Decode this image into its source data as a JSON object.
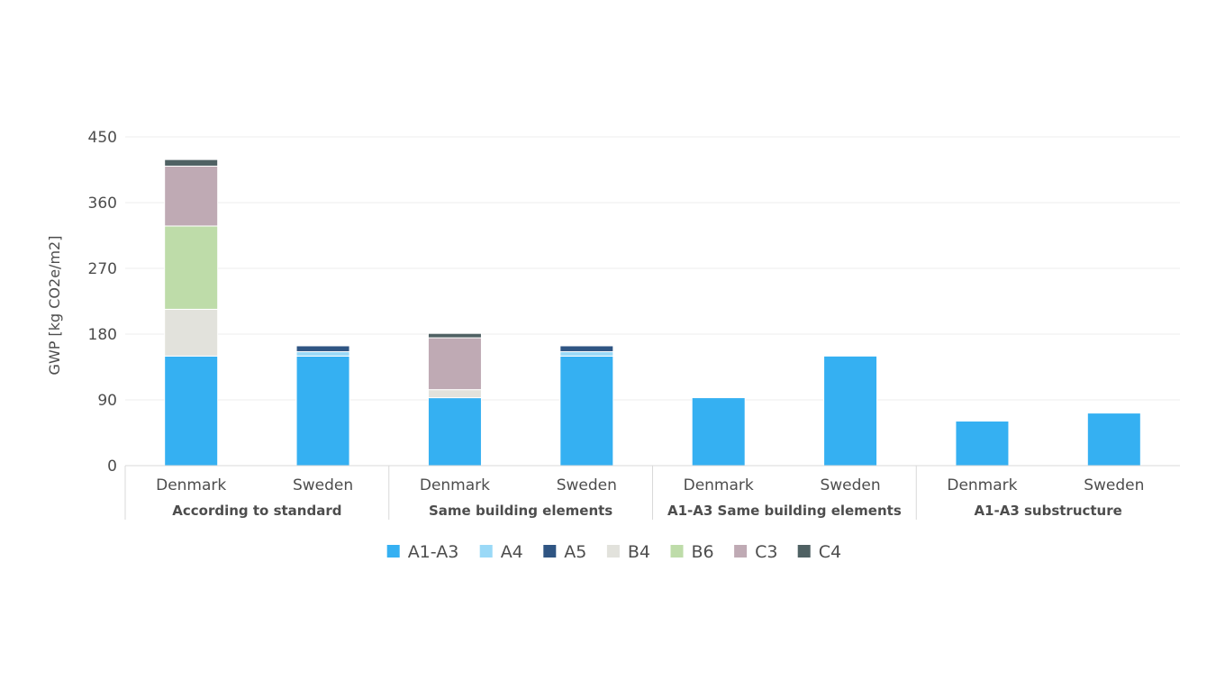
{
  "chart_data": {
    "type": "bar",
    "stacked": true,
    "ylabel": "GWP  [kg CO2e/m2]",
    "ylim": [
      0,
      450
    ],
    "yticks": [
      0,
      90,
      180,
      270,
      360,
      450
    ],
    "yticks_text": [
      "0",
      "90",
      "180",
      "270",
      "360",
      "450"
    ],
    "grid": true,
    "legend_position": "bottom",
    "groups": [
      {
        "label": "According to standard",
        "categories": [
          "Denmark",
          "Sweden"
        ]
      },
      {
        "label": "Same building elements",
        "categories": [
          "Denmark",
          "Sweden"
        ]
      },
      {
        "label": "A1-A3 Same building elements",
        "categories": [
          "Denmark",
          "Sweden"
        ]
      },
      {
        "label": "A1-A3 substructure",
        "categories": [
          "Denmark",
          "Sweden"
        ]
      }
    ],
    "series": [
      {
        "name": "A1-A3",
        "color": "#35b0f2",
        "values": [
          150,
          150,
          93,
          150,
          93,
          150,
          61,
          72
        ]
      },
      {
        "name": "A4",
        "color": "#9ad9f7",
        "values": [
          0,
          6,
          0,
          6,
          0,
          0,
          0,
          0
        ]
      },
      {
        "name": "A5",
        "color": "#2f5583",
        "values": [
          0,
          8,
          0,
          8,
          0,
          0,
          0,
          0
        ]
      },
      {
        "name": "B4",
        "color": "#e2e2dc",
        "values": [
          64,
          0,
          11,
          0,
          0,
          0,
          0,
          0
        ]
      },
      {
        "name": "B6",
        "color": "#bedca9",
        "values": [
          114,
          0,
          0,
          0,
          0,
          0,
          0,
          0
        ]
      },
      {
        "name": "C3",
        "color": "#bfaab4",
        "values": [
          82,
          0,
          71,
          0,
          0,
          0,
          0,
          0
        ]
      },
      {
        "name": "C4",
        "color": "#4f6163",
        "values": [
          9,
          0,
          6,
          0,
          0,
          0,
          0,
          0
        ]
      }
    ]
  }
}
